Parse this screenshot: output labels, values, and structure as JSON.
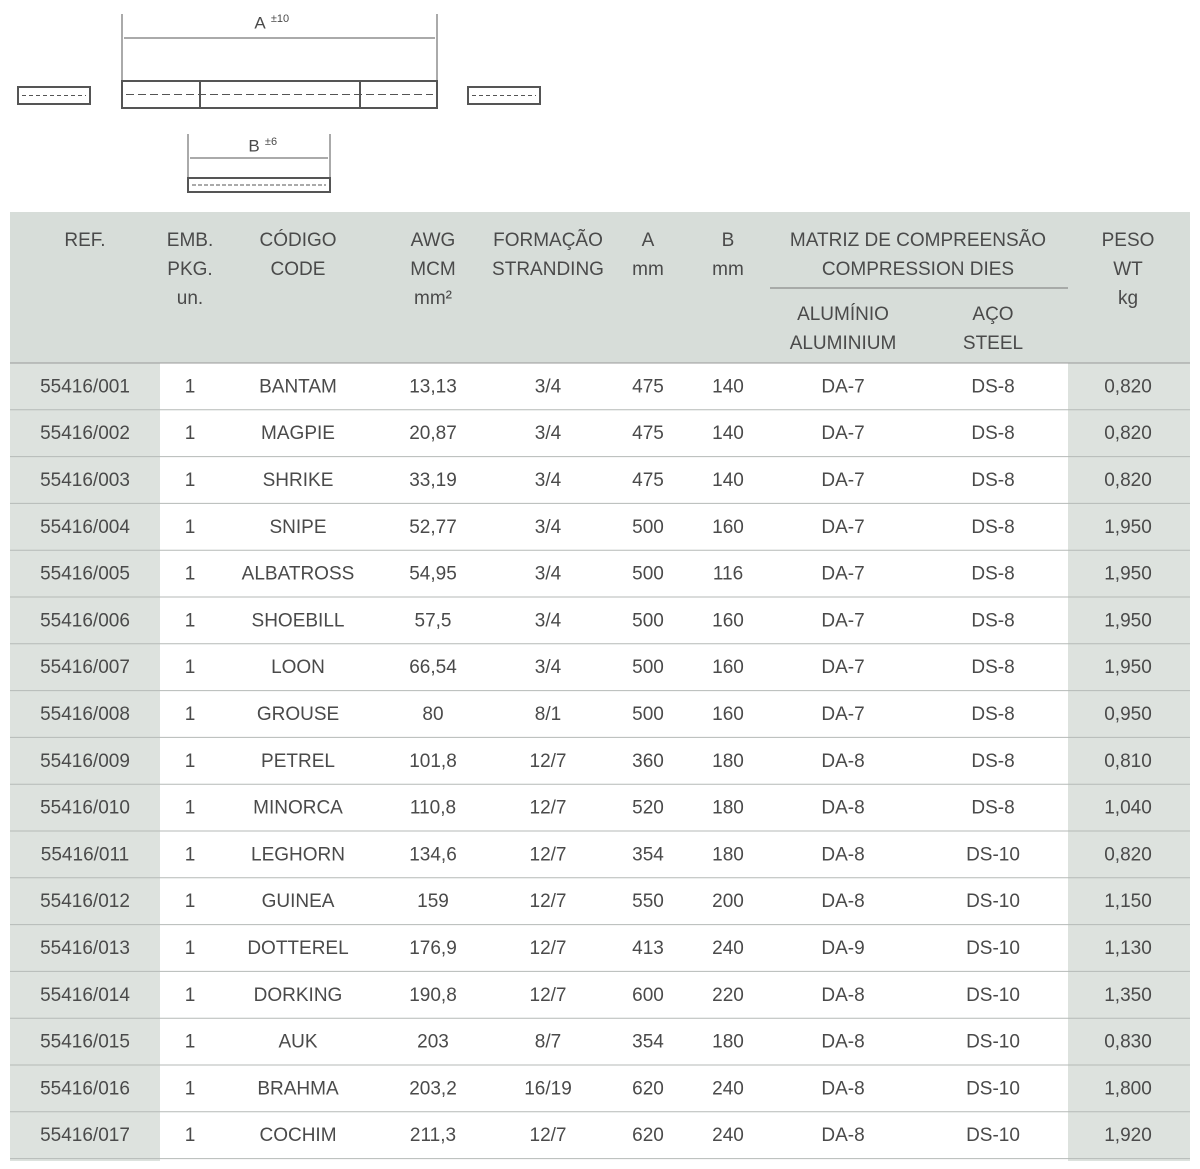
{
  "diagram": {
    "a_label": "A",
    "a_tol": "±10",
    "b_label": "B",
    "b_tol": "±6"
  },
  "table": {
    "headers": [
      {
        "lines": [
          "REF."
        ]
      },
      {
        "lines": [
          "EMB.",
          "PKG.",
          "un."
        ]
      },
      {
        "lines": [
          "CÓDIGO",
          "CODE"
        ]
      },
      {
        "lines": [
          "AWG",
          "MCM",
          "mm²"
        ]
      },
      {
        "lines": [
          "FORMAÇÃO",
          "STRANDING"
        ]
      },
      {
        "lines": [
          "A",
          "mm"
        ]
      },
      {
        "lines": [
          "B",
          "mm"
        ]
      },
      {
        "lines": [
          "PESO",
          "WT",
          "kg"
        ]
      }
    ],
    "group": {
      "lines": [
        "MATRIZ DE COMPREENSÃO",
        "COMPRESSION DIES"
      ],
      "sub": [
        {
          "lines": [
            "ALUMÍNIO",
            "ALUMINIUM"
          ]
        },
        {
          "lines": [
            "AÇO",
            "STEEL"
          ]
        }
      ]
    },
    "rows": [
      [
        "55416/001",
        "1",
        "BANTAM",
        "13,13",
        "3/4",
        "475",
        "140",
        "DA-7",
        "DS-8",
        "0,820"
      ],
      [
        "55416/002",
        "1",
        "MAGPIE",
        "20,87",
        "3/4",
        "475",
        "140",
        "DA-7",
        "DS-8",
        "0,820"
      ],
      [
        "55416/003",
        "1",
        "SHRIKE",
        "33,19",
        "3/4",
        "475",
        "140",
        "DA-7",
        "DS-8",
        "0,820"
      ],
      [
        "55416/004",
        "1",
        "SNIPE",
        "52,77",
        "3/4",
        "500",
        "160",
        "DA-7",
        "DS-8",
        "1,950"
      ],
      [
        "55416/005",
        "1",
        "ALBATROSS",
        "54,95",
        "3/4",
        "500",
        "116",
        "DA-7",
        "DS-8",
        "1,950"
      ],
      [
        "55416/006",
        "1",
        "SHOEBILL",
        "57,5",
        "3/4",
        "500",
        "160",
        "DA-7",
        "DS-8",
        "1,950"
      ],
      [
        "55416/007",
        "1",
        "LOON",
        "66,54",
        "3/4",
        "500",
        "160",
        "DA-7",
        "DS-8",
        "1,950"
      ],
      [
        "55416/008",
        "1",
        "GROUSE",
        "80",
        "8/1",
        "500",
        "160",
        "DA-7",
        "DS-8",
        "0,950"
      ],
      [
        "55416/009",
        "1",
        "PETREL",
        "101,8",
        "12/7",
        "360",
        "180",
        "DA-8",
        "DS-8",
        "0,810"
      ],
      [
        "55416/010",
        "1",
        "MINORCA",
        "110,8",
        "12/7",
        "520",
        "180",
        "DA-8",
        "DS-8",
        "1,040"
      ],
      [
        "55416/011",
        "1",
        "LEGHORN",
        "134,6",
        "12/7",
        "354",
        "180",
        "DA-8",
        "DS-10",
        "0,820"
      ],
      [
        "55416/012",
        "1",
        "GUINEA",
        "159",
        "12/7",
        "550",
        "200",
        "DA-8",
        "DS-10",
        "1,150"
      ],
      [
        "55416/013",
        "1",
        "DOTTEREL",
        "176,9",
        "12/7",
        "413",
        "240",
        "DA-9",
        "DS-10",
        "1,130"
      ],
      [
        "55416/014",
        "1",
        "DORKING",
        "190,8",
        "12/7",
        "600",
        "220",
        "DA-8",
        "DS-10",
        "1,350"
      ],
      [
        "55416/015",
        "1",
        "AUK",
        "203",
        "8/7",
        "354",
        "180",
        "DA-8",
        "DS-10",
        "0,830"
      ],
      [
        "55416/016",
        "1",
        "BRAHMA",
        "203,2",
        "16/19",
        "620",
        "240",
        "DA-8",
        "DS-10",
        "1,800"
      ],
      [
        "55416/017",
        "1",
        "COCHIM",
        "211,3",
        "12/7",
        "620",
        "240",
        "DA-8",
        "DS-10",
        "1,920"
      ]
    ]
  }
}
